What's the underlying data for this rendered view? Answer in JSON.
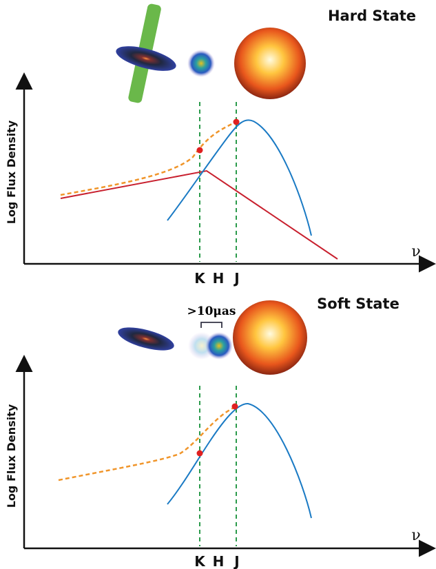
{
  "panels": [
    {
      "title": "Hard State",
      "y_label": "Log Flux Density",
      "x_label": "ν",
      "bands": [
        "K",
        "H",
        "J"
      ]
    },
    {
      "title": "Soft State",
      "annotation": ">10μas",
      "y_label": "Log Flux Density",
      "x_label": "ν",
      "bands": [
        "K",
        "H",
        "J"
      ]
    }
  ]
}
